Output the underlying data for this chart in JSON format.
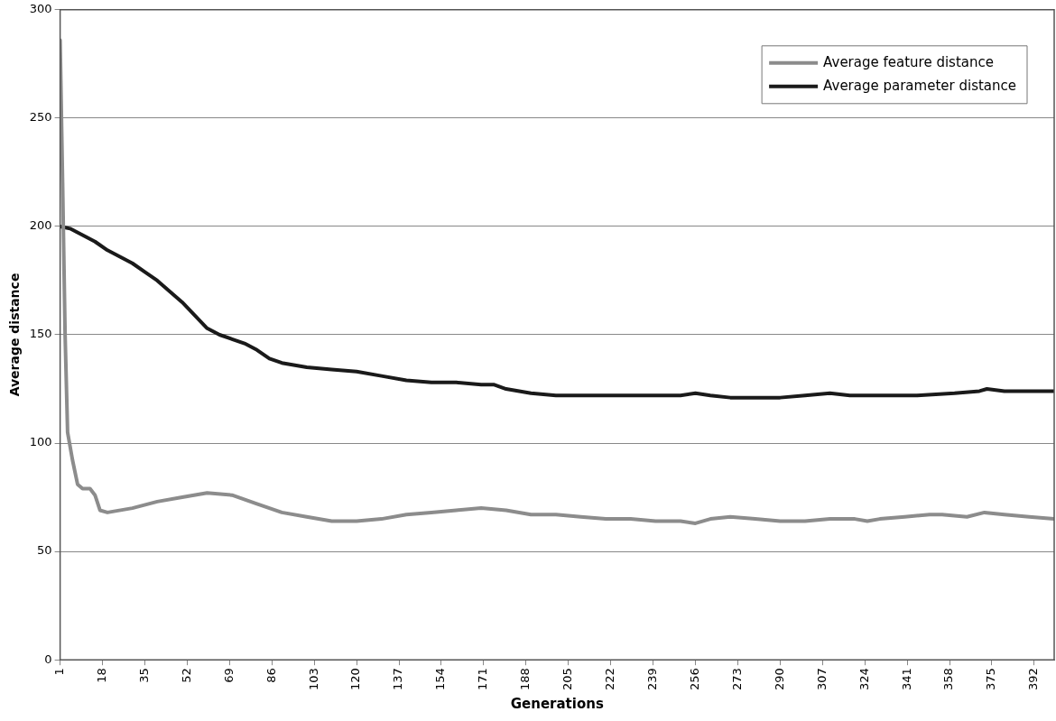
{
  "chart_data": {
    "type": "line",
    "xlabel": "Generations",
    "ylabel": "Average distance",
    "xlim": [
      1,
      400
    ],
    "xticks": [
      1,
      18,
      35,
      52,
      69,
      86,
      103,
      120,
      137,
      154,
      171,
      188,
      205,
      222,
      239,
      256,
      273,
      290,
      307,
      324,
      341,
      358,
      375,
      392
    ],
    "ylim": [
      0,
      300
    ],
    "yticks": [
      0,
      50,
      100,
      150,
      200,
      250,
      300
    ],
    "grid": "y",
    "legend": "top right",
    "marker": "none",
    "line_style": "solid",
    "series": [
      {
        "name": "Average feature distance",
        "color": "#8c8c8c",
        "x": [
          1,
          2,
          3,
          4,
          6,
          8,
          10,
          13,
          15,
          17,
          20,
          30,
          40,
          50,
          60,
          70,
          80,
          90,
          100,
          110,
          120,
          130,
          140,
          150,
          160,
          170,
          180,
          190,
          200,
          210,
          220,
          230,
          240,
          250,
          256,
          262,
          270,
          280,
          290,
          300,
          310,
          320,
          325,
          330,
          340,
          350,
          355,
          365,
          372,
          380,
          390,
          400
        ],
        "values": [
          286,
          220,
          150,
          105,
          92,
          81,
          79,
          79,
          76,
          69,
          68,
          70,
          73,
          75,
          77,
          76,
          72,
          68,
          66,
          64,
          64,
          65,
          67,
          68,
          69,
          70,
          69,
          67,
          67,
          66,
          65,
          65,
          64,
          64,
          63,
          65,
          66,
          65,
          64,
          64,
          65,
          65,
          64,
          65,
          66,
          67,
          67,
          66,
          68,
          67,
          66,
          65
        ]
      },
      {
        "name": "Average parameter distance",
        "color": "#1a1a1a",
        "x": [
          1,
          5,
          10,
          15,
          20,
          25,
          30,
          35,
          40,
          45,
          50,
          55,
          60,
          65,
          70,
          75,
          80,
          85,
          90,
          100,
          110,
          120,
          130,
          140,
          150,
          160,
          170,
          175,
          180,
          190,
          200,
          210,
          220,
          230,
          240,
          250,
          256,
          262,
          270,
          280,
          290,
          300,
          310,
          318,
          330,
          345,
          360,
          370,
          373,
          380,
          390,
          400
        ],
        "values": [
          200,
          199,
          196,
          193,
          189,
          186,
          183,
          179,
          175,
          170,
          165,
          159,
          153,
          150,
          148,
          146,
          143,
          139,
          137,
          135,
          134,
          133,
          131,
          129,
          128,
          128,
          127,
          127,
          125,
          123,
          122,
          122,
          122,
          122,
          122,
          122,
          123,
          122,
          121,
          121,
          121,
          122,
          123,
          122,
          122,
          122,
          123,
          124,
          125,
          124,
          124,
          124
        ]
      }
    ]
  }
}
